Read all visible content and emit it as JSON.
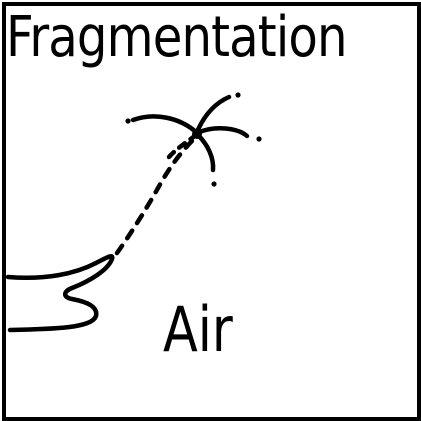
{
  "diagram": {
    "title": "Fragmentation",
    "label": "Air"
  },
  "colors": {
    "ink": "#000000",
    "background": "#ffffff"
  }
}
